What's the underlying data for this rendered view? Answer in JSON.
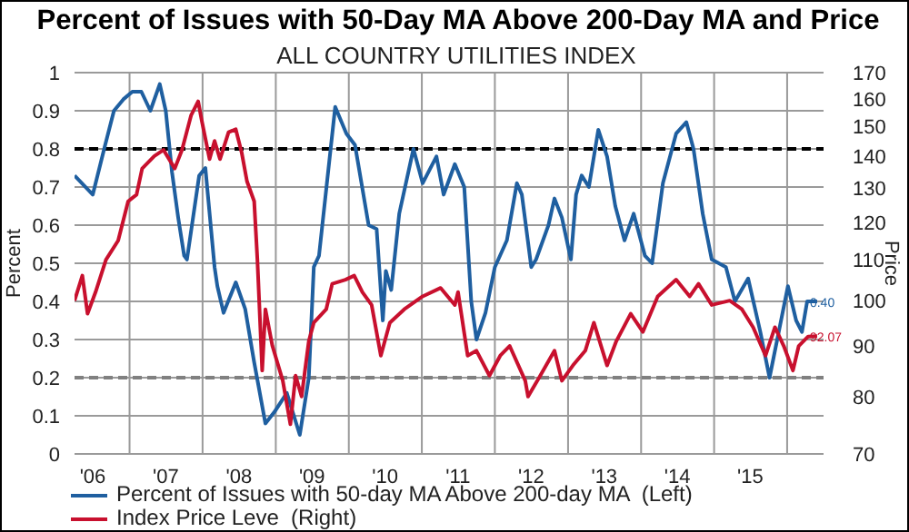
{
  "chart_data": {
    "type": "line",
    "title": "Percent of Issues with 50-Day MA Above 200-Day MA and Price",
    "subtitle": "ALL COUNTRY UTILITIES INDEX",
    "ylabel": "Percent",
    "y2label": "Price",
    "xlim": [
      "2006-04-01",
      "2016-07-01"
    ],
    "xticks": [
      {
        "value": "2006-07-01",
        "label": "'06"
      },
      {
        "value": "2007-01-01",
        "label": null
      },
      {
        "value": "2007-07-01",
        "label": "'07"
      },
      {
        "value": "2008-01-01",
        "label": null
      },
      {
        "value": "2008-07-01",
        "label": "'08"
      },
      {
        "value": "2009-01-01",
        "label": null
      },
      {
        "value": "2009-07-01",
        "label": "'09"
      },
      {
        "value": "2010-01-01",
        "label": null
      },
      {
        "value": "2010-07-01",
        "label": "'10"
      },
      {
        "value": "2011-01-01",
        "label": null
      },
      {
        "value": "2011-07-01",
        "label": "'11"
      },
      {
        "value": "2012-01-01",
        "label": null
      },
      {
        "value": "2012-07-01",
        "label": "'12"
      },
      {
        "value": "2013-01-01",
        "label": null
      },
      {
        "value": "2013-07-01",
        "label": "'13"
      },
      {
        "value": "2014-01-01",
        "label": null
      },
      {
        "value": "2014-07-01",
        "label": "'14"
      },
      {
        "value": "2015-01-01",
        "label": null
      },
      {
        "value": "2015-07-01",
        "label": "'15"
      },
      {
        "value": "2016-01-01",
        "label": null
      }
    ],
    "ylim": [
      0,
      1
    ],
    "yticks": [
      0,
      0.1,
      0.2,
      0.3,
      0.4,
      0.5,
      0.6,
      0.7,
      0.8,
      0.9,
      1
    ],
    "y2lim": [
      70,
      170
    ],
    "y2ticks": [
      70,
      80,
      90,
      100,
      110,
      120,
      130,
      140,
      150,
      160,
      170
    ],
    "log": "y2",
    "grid": true,
    "legend": "bottom",
    "ref_lines": [
      {
        "axis": "y",
        "value": 0.8,
        "color": "#000000",
        "line_style": "dashed"
      },
      {
        "axis": "y",
        "value": 0.2,
        "color": "#808080",
        "line_style": "dashed"
      }
    ],
    "series": [
      {
        "name": "Percent of Issues with 50-day MA Above 200-day MA  (Left)",
        "color": "#1f5fa0",
        "axis": "y",
        "x": [
          "2006-04-01",
          "2006-07-01",
          "2006-09-01",
          "2006-10-15",
          "2006-12-01",
          "2007-01-15",
          "2007-03-01",
          "2007-04-15",
          "2007-06-01",
          "2007-07-01",
          "2007-08-01",
          "2007-09-01",
          "2007-10-01",
          "2007-10-15",
          "2007-12-15",
          "2008-01-15",
          "2008-03-01",
          "2008-03-15",
          "2008-04-15",
          "2008-06-15",
          "2008-08-01",
          "2008-09-15",
          "2008-11-10",
          "2008-12-25",
          "2009-02-25",
          "2009-05-01",
          "2009-06-15",
          "2009-07-10",
          "2009-08-05",
          "2009-10-25",
          "2009-12-20",
          "2010-02-01",
          "2010-04-10",
          "2010-05-20",
          "2010-06-20",
          "2010-07-05",
          "2010-08-01",
          "2010-09-10",
          "2010-11-20",
          "2011-01-05",
          "2011-03-15",
          "2011-04-20",
          "2011-06-15",
          "2011-08-01",
          "2011-09-05",
          "2011-10-01",
          "2011-11-15",
          "2012-01-01",
          "2012-03-01",
          "2012-04-20",
          "2012-05-15",
          "2012-07-01",
          "2012-07-25",
          "2012-09-25",
          "2012-10-25",
          "2012-12-01",
          "2013-01-15",
          "2013-02-10",
          "2013-03-10",
          "2013-04-15",
          "2013-06-01",
          "2013-07-15",
          "2013-08-25",
          "2013-10-10",
          "2013-11-25",
          "2014-01-20",
          "2014-02-25",
          "2014-04-20",
          "2014-06-25",
          "2014-08-15",
          "2014-09-20",
          "2014-11-05",
          "2014-12-20",
          "2015-03-01",
          "2015-04-15",
          "2015-06-20",
          "2015-08-20",
          "2015-10-05",
          "2015-11-20",
          "2016-01-05",
          "2016-02-15",
          "2016-03-15",
          "2016-04-10",
          "2016-05-30"
        ],
        "values": [
          0.73,
          0.68,
          0.81,
          0.9,
          0.93,
          0.95,
          0.95,
          0.9,
          0.97,
          0.9,
          0.74,
          0.62,
          0.52,
          0.51,
          0.73,
          0.75,
          0.49,
          0.44,
          0.37,
          0.45,
          0.38,
          0.24,
          0.08,
          0.11,
          0.16,
          0.05,
          0.2,
          0.49,
          0.52,
          0.91,
          0.84,
          0.81,
          0.6,
          0.59,
          0.35,
          0.48,
          0.43,
          0.63,
          0.8,
          0.71,
          0.78,
          0.68,
          0.76,
          0.7,
          0.4,
          0.3,
          0.37,
          0.49,
          0.56,
          0.71,
          0.68,
          0.49,
          0.51,
          0.6,
          0.67,
          0.62,
          0.51,
          0.68,
          0.73,
          0.7,
          0.85,
          0.78,
          0.65,
          0.56,
          0.63,
          0.52,
          0.5,
          0.71,
          0.84,
          0.87,
          0.8,
          0.63,
          0.51,
          0.49,
          0.4,
          0.46,
          0.32,
          0.2,
          0.32,
          0.44,
          0.35,
          0.32,
          0.4,
          0.4
        ],
        "value_labels": [
          null,
          null,
          null,
          null,
          null,
          null,
          null,
          null,
          null,
          null,
          null,
          null,
          null,
          null,
          null,
          null,
          null,
          null,
          null,
          null,
          null,
          null,
          null,
          null,
          null,
          null,
          null,
          null,
          null,
          null,
          null,
          null,
          null,
          null,
          null,
          null,
          null,
          null,
          null,
          null,
          null,
          null,
          null,
          null,
          null,
          null,
          null,
          null,
          null,
          null,
          null,
          null,
          null,
          null,
          null,
          null,
          null,
          null,
          null,
          null,
          null,
          null,
          null,
          null,
          null,
          null,
          null,
          null,
          null,
          null,
          null,
          null,
          null,
          null,
          null,
          null,
          null,
          null,
          null,
          null,
          null,
          null,
          null,
          "0.40"
        ]
      },
      {
        "name": "Index Price Leve  (Right)",
        "color": "#c8102e",
        "axis": "y2",
        "x": [
          "2006-04-01",
          "2006-05-10",
          "2006-06-05",
          "2006-07-15",
          "2006-09-05",
          "2006-11-05",
          "2006-12-25",
          "2007-02-05",
          "2007-03-05",
          "2007-05-05",
          "2007-06-20",
          "2007-08-15",
          "2007-09-20",
          "2007-11-05",
          "2007-12-10",
          "2007-12-28",
          "2008-02-05",
          "2008-03-01",
          "2008-03-28",
          "2008-05-10",
          "2008-06-15",
          "2008-07-15",
          "2008-08-10",
          "2008-09-15",
          "2008-10-01",
          "2008-10-25",
          "2008-11-10",
          "2008-12-15",
          "2009-02-05",
          "2009-03-15",
          "2009-04-10",
          "2009-05-10",
          "2009-06-15",
          "2009-07-10",
          "2009-09-10",
          "2009-10-10",
          "2009-12-15",
          "2010-01-28",
          "2010-03-10",
          "2010-04-25",
          "2010-06-10",
          "2010-07-25",
          "2010-10-05",
          "2011-01-05",
          "2011-04-05",
          "2011-06-15",
          "2011-07-01",
          "2011-08-18",
          "2011-10-01",
          "2011-12-05",
          "2012-01-28",
          "2012-03-15",
          "2012-06-01",
          "2012-06-15",
          "2012-08-15",
          "2012-10-25",
          "2012-12-01",
          "2013-01-25",
          "2013-03-28",
          "2013-05-10",
          "2013-07-15",
          "2013-08-30",
          "2013-11-10",
          "2014-01-10",
          "2014-03-25",
          "2014-06-25",
          "2014-09-01",
          "2014-10-15",
          "2014-12-20",
          "2015-03-20",
          "2015-05-20",
          "2015-07-15",
          "2015-09-15",
          "2015-11-01",
          "2015-12-15",
          "2016-01-30",
          "2016-02-28",
          "2016-04-15",
          "2016-05-30"
        ],
        "values": [
          100,
          106,
          97,
          102,
          110,
          115,
          126,
          128,
          136,
          140,
          142,
          136,
          142,
          154,
          159,
          152,
          139,
          145,
          139,
          148,
          149,
          141,
          132,
          126,
          110,
          85,
          98,
          90,
          83,
          75,
          84,
          80,
          91,
          95,
          98,
          104,
          105,
          106,
          102,
          99,
          88,
          95,
          98,
          101,
          103,
          99,
          102,
          88,
          89,
          84,
          88,
          90,
          83,
          80,
          84,
          89,
          83,
          86,
          89,
          95,
          86,
          91,
          97,
          93,
          101,
          105,
          101,
          104,
          99,
          100,
          98,
          94,
          88,
          94,
          90,
          85,
          90,
          92,
          92.07
        ],
        "value_labels": [
          null,
          null,
          null,
          null,
          null,
          null,
          null,
          null,
          null,
          null,
          null,
          null,
          null,
          null,
          null,
          null,
          null,
          null,
          null,
          null,
          null,
          null,
          null,
          null,
          null,
          null,
          null,
          null,
          null,
          null,
          null,
          null,
          null,
          null,
          null,
          null,
          null,
          null,
          null,
          null,
          null,
          null,
          null,
          null,
          null,
          null,
          null,
          null,
          null,
          null,
          null,
          null,
          null,
          null,
          null,
          null,
          null,
          null,
          null,
          null,
          null,
          null,
          null,
          null,
          null,
          null,
          null,
          null,
          null,
          null,
          null,
          null,
          null,
          null,
          null,
          null,
          null,
          null,
          "92.07"
        ]
      }
    ]
  }
}
